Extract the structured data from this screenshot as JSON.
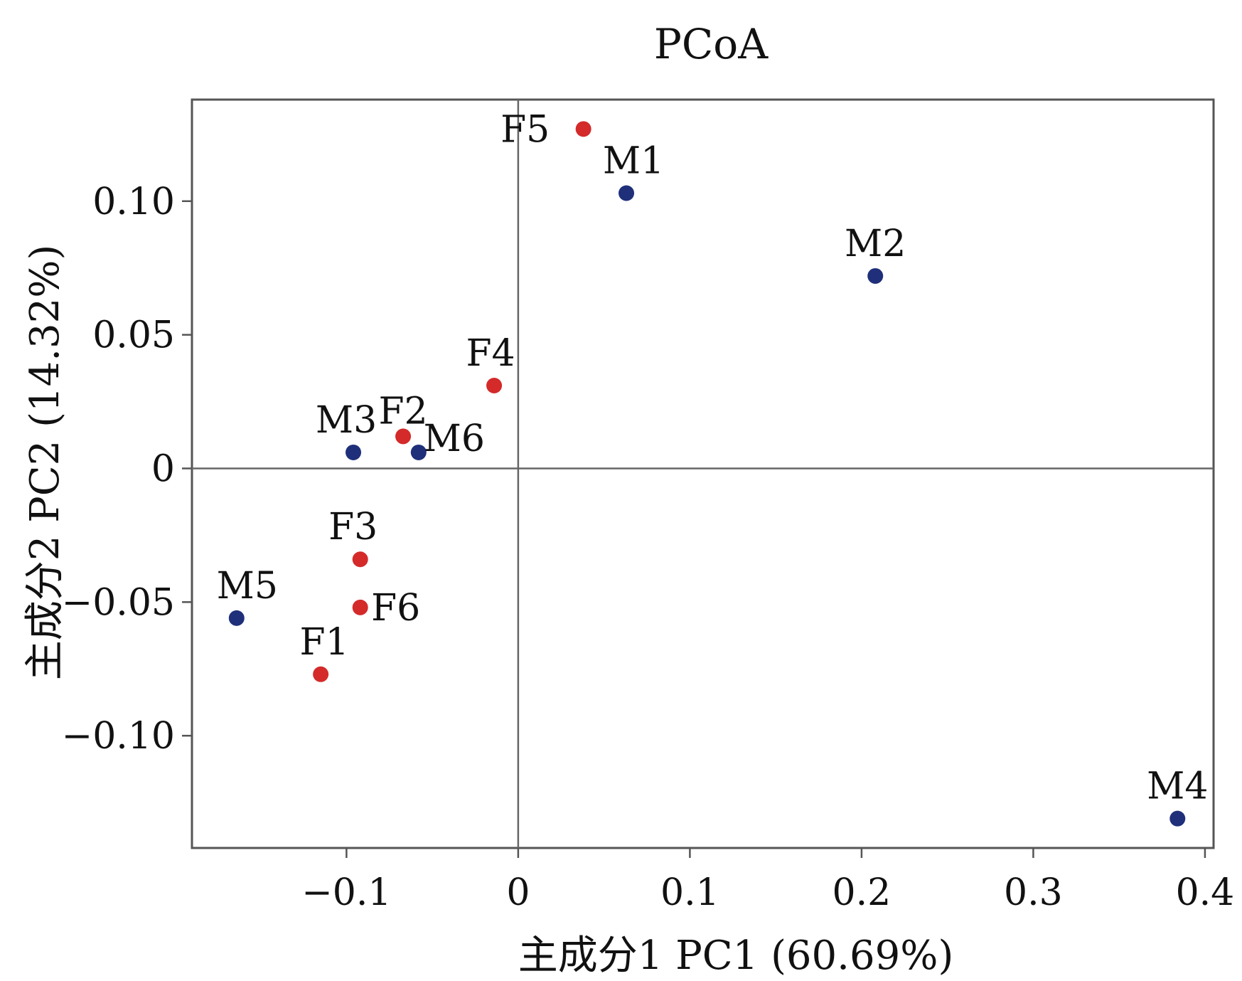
{
  "chart_data": {
    "type": "scatter",
    "title": "PCoA",
    "xlabel": "主成分1 PC1 (60.69%)",
    "ylabel": "主成分2 PC2 (14.32%)",
    "xlim": [
      -0.19,
      0.405
    ],
    "ylim": [
      -0.142,
      0.138
    ],
    "xticks": [
      -0.1,
      0,
      0.1,
      0.2,
      0.3,
      0.4
    ],
    "xtick_labels": [
      "−0.1",
      "0",
      "0.1",
      "0.2",
      "0.3",
      "0.4"
    ],
    "yticks": [
      0.1,
      0.05,
      0,
      -0.05,
      -0.1
    ],
    "ytick_labels": [
      "0.10",
      "0.05",
      "0",
      "−0.05",
      "−0.10"
    ],
    "grid": false,
    "zero_lines": true,
    "colors": {
      "F": "#d42a2a",
      "M": "#1f2f7a"
    },
    "points": [
      {
        "label": "F5",
        "group": "F",
        "x": 0.038,
        "y": 0.127
      },
      {
        "label": "M1",
        "group": "M",
        "x": 0.063,
        "y": 0.103
      },
      {
        "label": "M2",
        "group": "M",
        "x": 0.208,
        "y": 0.072
      },
      {
        "label": "F4",
        "group": "F",
        "x": -0.014,
        "y": 0.031
      },
      {
        "label": "M3",
        "group": "M",
        "x": -0.096,
        "y": 0.006
      },
      {
        "label": "F2",
        "group": "F",
        "x": -0.067,
        "y": 0.012
      },
      {
        "label": "M6",
        "group": "M",
        "x": -0.058,
        "y": 0.006
      },
      {
        "label": "F3",
        "group": "F",
        "x": -0.092,
        "y": -0.034
      },
      {
        "label": "F6",
        "group": "F",
        "x": -0.092,
        "y": -0.052
      },
      {
        "label": "M5",
        "group": "M",
        "x": -0.164,
        "y": -0.056
      },
      {
        "label": "F1",
        "group": "F",
        "x": -0.115,
        "y": -0.077
      },
      {
        "label": "M4",
        "group": "M",
        "x": 0.384,
        "y": -0.131
      }
    ]
  }
}
